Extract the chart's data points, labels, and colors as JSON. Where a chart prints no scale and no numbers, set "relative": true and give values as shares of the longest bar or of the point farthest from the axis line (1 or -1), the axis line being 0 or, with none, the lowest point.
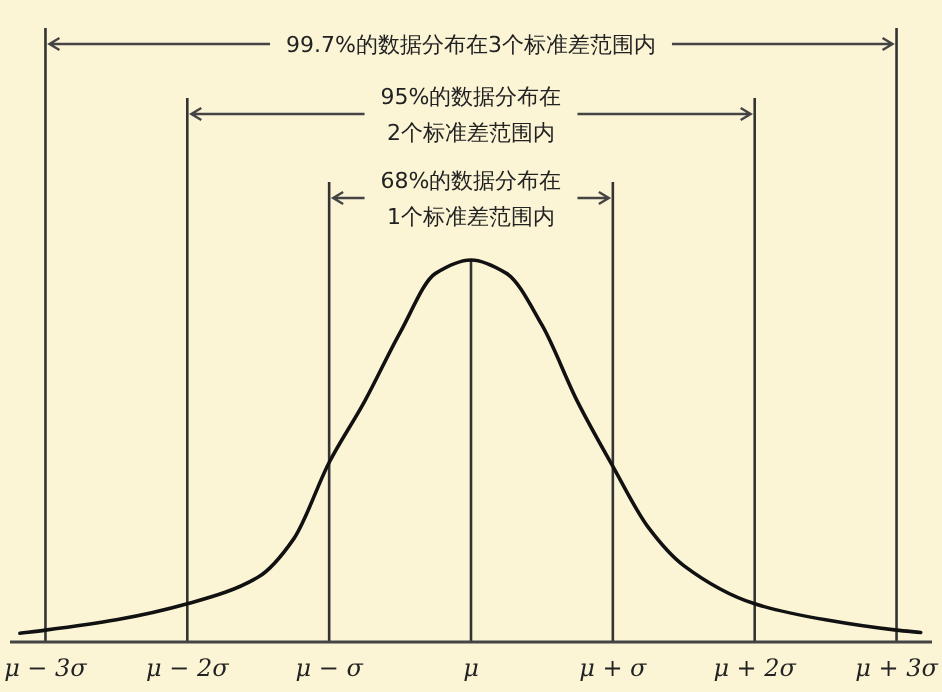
{
  "chart_data": {
    "type": "line",
    "relative": true,
    "x": [
      -3.18,
      -3,
      -2.5,
      -2,
      -1.5,
      -1.25,
      -1,
      -0.75,
      -0.5,
      -0.25,
      0,
      0.25,
      0.5,
      0.75,
      1,
      1.25,
      1.5,
      2,
      2.5,
      3,
      3.17
    ],
    "xlim": [
      -3.25,
      3.25
    ],
    "xticks": [
      {
        "value": -3,
        "label": "μ − 3σ"
      },
      {
        "value": -2,
        "label": "μ − 2σ"
      },
      {
        "value": -1,
        "label": "μ − σ"
      },
      {
        "value": 0,
        "label": "μ"
      },
      {
        "value": 1,
        "label": "μ + σ"
      },
      {
        "value": 2,
        "label": "μ + 2σ"
      },
      {
        "value": 3,
        "label": "μ + 3σ"
      }
    ],
    "series": [
      {
        "color": "#111111",
        "values": [
          0.023,
          0.031,
          0.058,
          0.1,
          0.17,
          0.27,
          0.47,
          0.63,
          0.81,
          0.965,
          1,
          0.965,
          0.83,
          0.63,
          0.46,
          0.3,
          0.2,
          0.1,
          0.058,
          0.031,
          0.025
        ]
      }
    ],
    "marker": "none",
    "line_style": "solid",
    "ref_lines": [
      {
        "axis": "x",
        "value": -3,
        "color": "#333333"
      },
      {
        "axis": "x",
        "value": -2,
        "color": "#333333"
      },
      {
        "axis": "x",
        "value": -1,
        "color": "#333333"
      },
      {
        "axis": "x",
        "value": 0,
        "color": "#333333"
      },
      {
        "axis": "x",
        "value": 1,
        "color": "#333333"
      },
      {
        "axis": "x",
        "value": 2,
        "color": "#333333"
      },
      {
        "axis": "x",
        "value": 3,
        "color": "#333333"
      }
    ],
    "annotations": [
      "99.7%的数据分布在3个标准差范围内",
      "95%的数据分布在\n2个标准差范围内",
      "68%的数据分布在\n1个标准差范围内"
    ]
  }
}
